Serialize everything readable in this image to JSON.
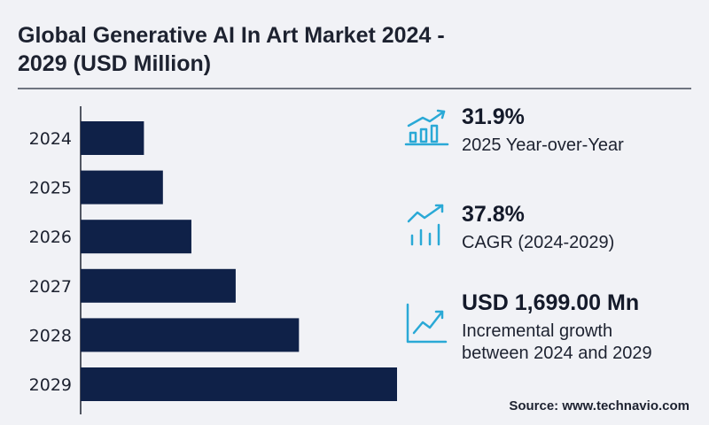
{
  "header": {
    "title_line1": "Global Generative AI In Art Market 2024 -",
    "title_line2": "2029 (USD Million)"
  },
  "chart_data": {
    "type": "bar",
    "orientation": "horizontal",
    "categories": [
      "2024",
      "2025",
      "2026",
      "2027",
      "2028",
      "2029"
    ],
    "values": [
      20,
      26,
      35,
      49,
      69,
      100
    ],
    "value_note": "relative bar lengths (no value axis shown)",
    "title": "Global Generative AI In Art Market 2024 - 2029 (USD Million)",
    "xlabel": "",
    "ylabel": "",
    "xlim": [
      0,
      100
    ],
    "grid": false,
    "legend": "none",
    "bar_color": "#0f2148"
  },
  "kpis": [
    {
      "value": "31.9%",
      "label": "2025 Year-over-Year",
      "icon": "bar-growth-icon"
    },
    {
      "value": "37.8%",
      "label": "CAGR (2024-2029)",
      "icon": "trend-bars-icon"
    },
    {
      "value": "USD 1,699.00 Mn",
      "label": "Incremental growth between 2024 and 2029",
      "icon": "line-chart-icon"
    }
  ],
  "source": "Source: www.technavio.com",
  "colors": {
    "accent": "#2aa9d6",
    "bar": "#0f2148",
    "background": "#f1f2f6"
  }
}
